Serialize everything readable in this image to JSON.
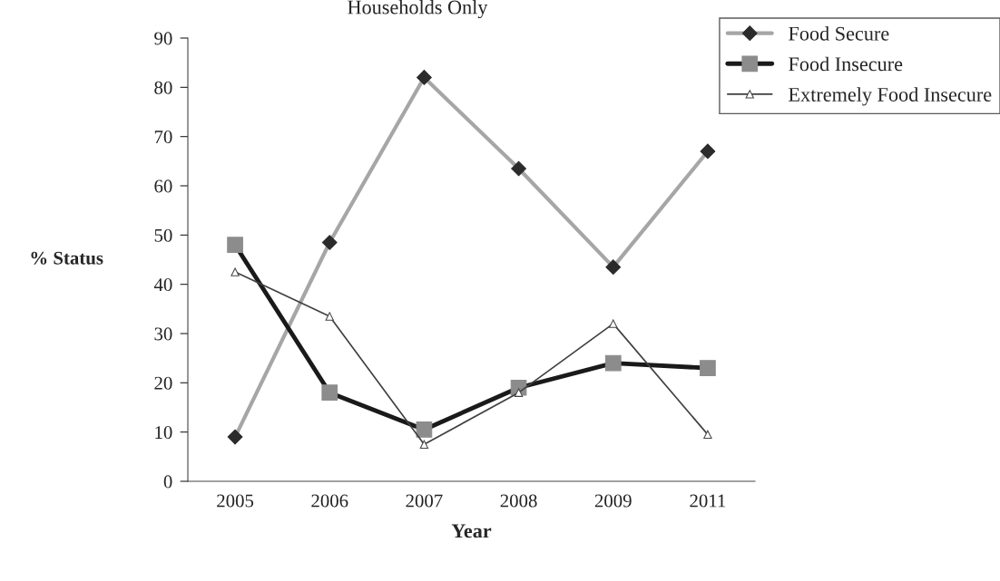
{
  "chart_data": {
    "type": "line",
    "title": "Households Only",
    "xlabel": "Year",
    "ylabel": "% Status",
    "categories": [
      "2005",
      "2006",
      "2007",
      "2008",
      "2009",
      "2011"
    ],
    "series": [
      {
        "name": "Food Secure",
        "color": "#a6a6a6",
        "marker": "diamond",
        "values": [
          9,
          48.5,
          82,
          63.5,
          43.5,
          67
        ]
      },
      {
        "name": "Food Insecure",
        "color": "#1a1a1a",
        "marker": "square",
        "values": [
          48,
          18,
          10.5,
          19,
          24,
          23
        ]
      },
      {
        "name": "Extremely Food Insecure",
        "color": "#404040",
        "marker": "triangle",
        "values": [
          42.5,
          33.5,
          7.5,
          18,
          32,
          9.5
        ]
      }
    ],
    "ylim": [
      0,
      90
    ],
    "yticks": [
      0,
      10,
      20,
      30,
      40,
      50,
      60,
      70,
      80,
      90
    ],
    "grid": false,
    "legend": "top right",
    "line_style": "solid"
  }
}
